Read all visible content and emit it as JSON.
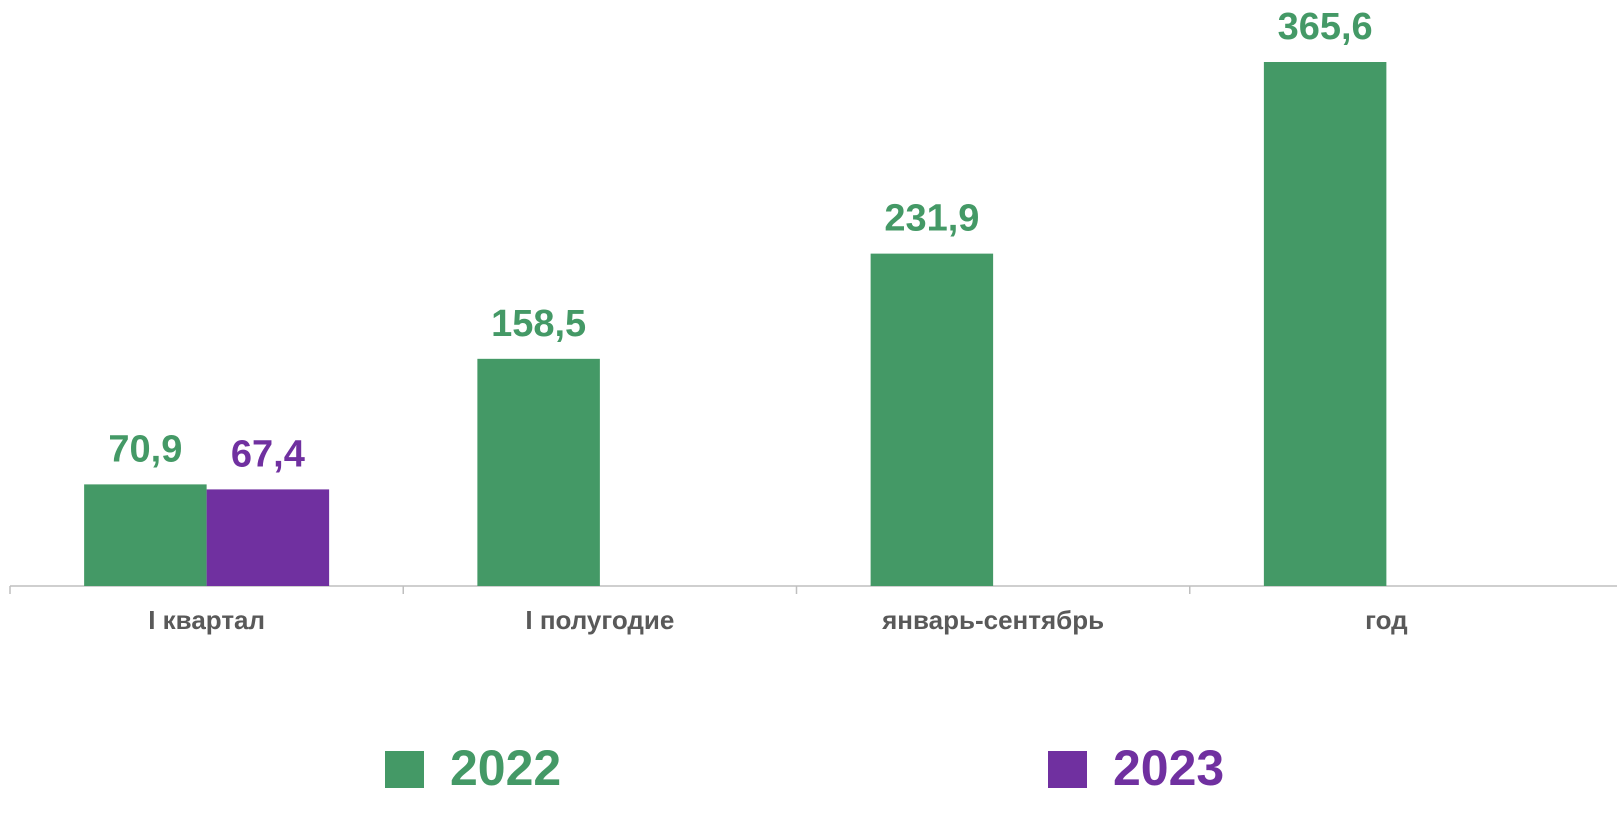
{
  "chart_data": {
    "type": "bar",
    "categories": [
      "I квартал",
      "I полугодие",
      "январь-сентябрь",
      "год"
    ],
    "series": [
      {
        "name": "2022",
        "color": "#449966",
        "values": [
          70.9,
          158.5,
          231.9,
          365.6
        ],
        "value_labels": [
          "70,9",
          "158,5",
          "231,9",
          "365,6"
        ]
      },
      {
        "name": "2023",
        "color": "#7030a0",
        "values": [
          67.4,
          null,
          null,
          null
        ],
        "value_labels": [
          "67,4",
          null,
          null,
          null
        ]
      }
    ],
    "legend": "bottom"
  }
}
